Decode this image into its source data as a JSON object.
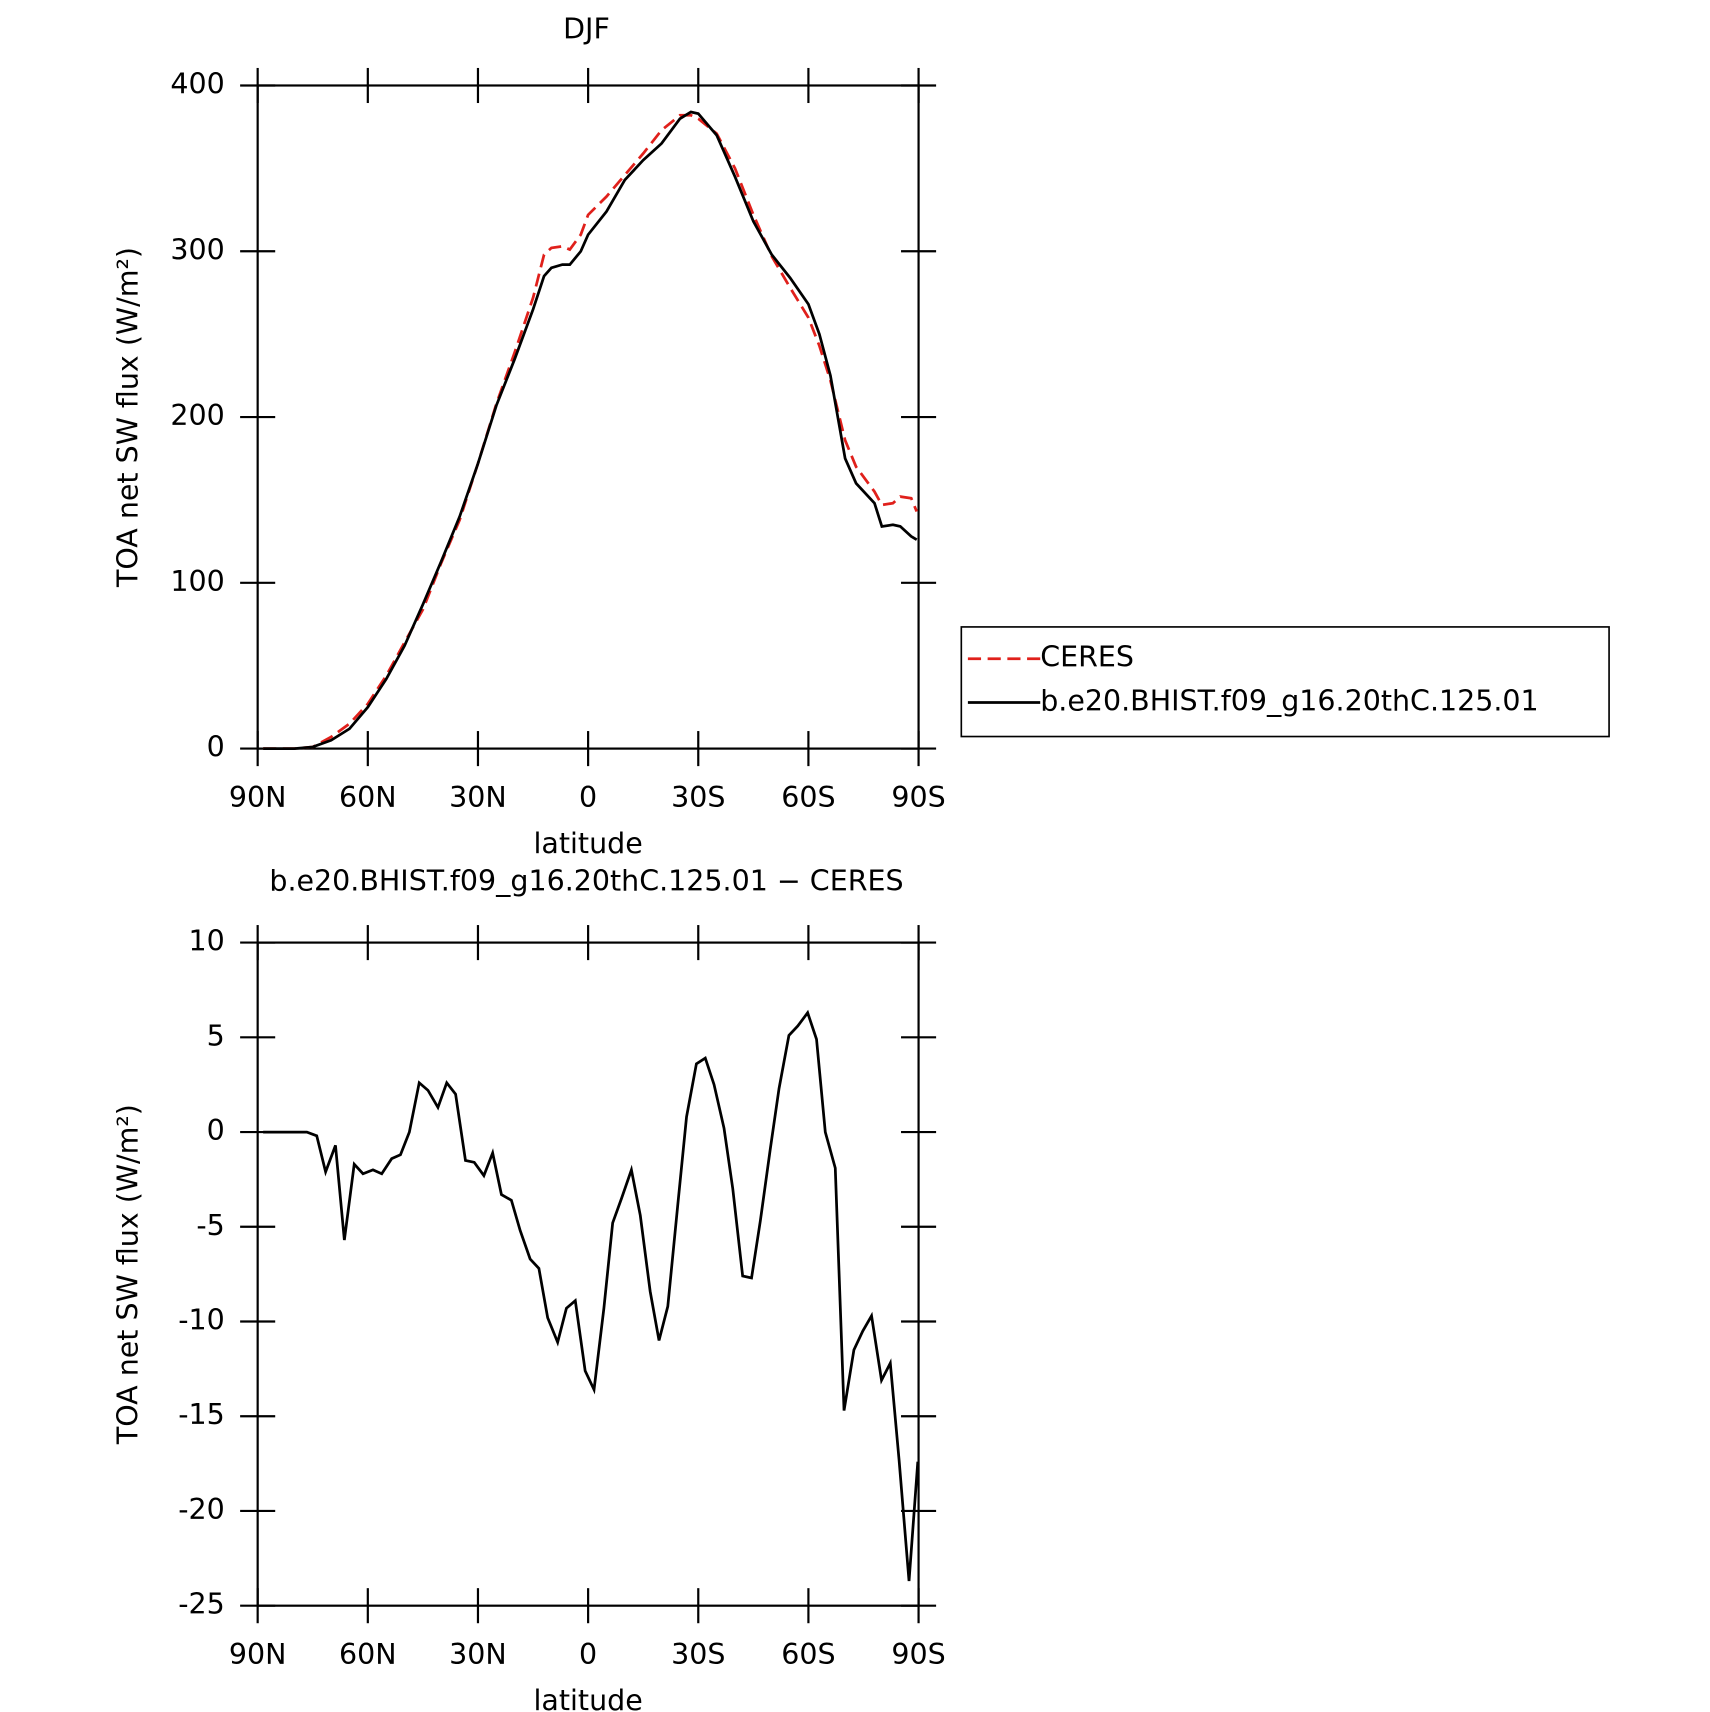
{
  "chart_data": [
    {
      "type": "line",
      "title": "DJF",
      "x_label": "latitude",
      "y_label": "TOA net SW flux (W/m²)",
      "x": [
        88.5,
        80,
        75,
        70,
        65,
        60,
        55,
        50,
        45,
        40,
        35,
        30,
        25,
        20,
        15,
        12,
        10,
        7,
        5,
        2,
        0,
        -5,
        -10,
        -15,
        -20,
        -25,
        -28,
        -30,
        -35,
        -40,
        -45,
        -50,
        -55,
        -60,
        -63,
        -66,
        -70,
        -73,
        -78,
        -80,
        -83,
        -85,
        -88,
        -89.5
      ],
      "series": [
        {
          "name": "CERES",
          "color": "#e0201b",
          "line_style": "dashed",
          "values": [
            0,
            0,
            1,
            7,
            15,
            27,
            44,
            64,
            84,
            112,
            138,
            172,
            208,
            239,
            272,
            298,
            302,
            303,
            301,
            310,
            322,
            333,
            346,
            359,
            373,
            382,
            382,
            380,
            371,
            350,
            322,
            297,
            278,
            260,
            243,
            222,
            186,
            170,
            155,
            147,
            148,
            152,
            151,
            143
          ]
        },
        {
          "name": "b.e20.BHIST.f09_g16.20thC.125.01",
          "color": "#000000",
          "line_style": "solid",
          "values": [
            0,
            0,
            1,
            5,
            12,
            25,
            42,
            62,
            87,
            113,
            140,
            172,
            207,
            235,
            265,
            285,
            290,
            292,
            292,
            300,
            310,
            324,
            343,
            355,
            365,
            380,
            384,
            383,
            370,
            345,
            318,
            298,
            284,
            268,
            250,
            225,
            175,
            160,
            148,
            134,
            135,
            134,
            128,
            126
          ]
        }
      ],
      "xlim": [
        90,
        -90
      ],
      "xticks": [
        {
          "value": 90,
          "label": "90N"
        },
        {
          "value": 60,
          "label": "60N"
        },
        {
          "value": 30,
          "label": "30N"
        },
        0,
        {
          "value": -30,
          "label": "30S"
        },
        {
          "value": -60,
          "label": "60S"
        },
        {
          "value": -90,
          "label": "90S"
        }
      ],
      "ylim": [
        0,
        400
      ],
      "yticks": [
        0,
        100,
        200,
        300,
        400
      ],
      "legend": "right"
    },
    {
      "type": "line",
      "title": "b.e20.BHIST.f09_g16.20thC.125.01 − CERES",
      "x_label": "latitude",
      "y_label": "TOA net SW flux (W/m²)",
      "x": [
        88.5,
        83.1,
        76.6,
        73.9,
        71.5,
        68.8,
        66.4,
        63.7,
        61.3,
        58.6,
        56.2,
        53.5,
        51.1,
        48.7,
        46.0,
        43.6,
        40.9,
        38.5,
        36.1,
        33.4,
        31.0,
        28.4,
        26.0,
        23.6,
        20.9,
        18.5,
        15.8,
        13.4,
        11.0,
        8.3,
        5.9,
        3.5,
        0.8,
        -1.6,
        -4.3,
        -6.7,
        -9.1,
        -11.8,
        -14.2,
        -16.9,
        -19.3,
        -21.7,
        -24.4,
        -26.8,
        -29.5,
        -31.9,
        -34.3,
        -37.0,
        -39.4,
        -42.1,
        -44.5,
        -46.9,
        -49.6,
        -52.0,
        -54.7,
        -57.1,
        -59.8,
        -62.2,
        -64.6,
        -67.3,
        -69.7,
        -72.4,
        -74.8,
        -77.2,
        -79.9,
        -82.3,
        -84.7,
        -87.4,
        -89.8
      ],
      "series": [
        {
          "name": "b.e20.BHIST.f09_g16.20thC.125.01 − CERES",
          "color": "#000000",
          "line_style": "solid",
          "values": [
            0,
            0,
            0,
            -0.2,
            -2.1,
            -0.7,
            -5.7,
            -1.7,
            -2.2,
            -2.0,
            -2.2,
            -1.4,
            -1.2,
            0.0,
            2.6,
            2.2,
            1.3,
            2.6,
            2.0,
            -1.5,
            -1.6,
            -2.3,
            -1.1,
            -3.3,
            -3.6,
            -5.2,
            -6.7,
            -7.2,
            -9.8,
            -11.1,
            -9.3,
            -8.9,
            -12.6,
            -13.6,
            -9.3,
            -4.8,
            -3.5,
            -2.0,
            -4.4,
            -8.4,
            -11.0,
            -9.2,
            -3.9,
            0.8,
            3.6,
            3.9,
            2.5,
            0.2,
            -3.0,
            -7.6,
            -7.7,
            -4.7,
            -0.9,
            2.3,
            5.1,
            5.6,
            6.3,
            4.9,
            0.0,
            -1.9,
            -14.7,
            -11.5,
            -10.5,
            -9.7,
            -13.1,
            -12.2,
            -17.3,
            -23.7,
            -17.4
          ]
        }
      ],
      "xlim": [
        90,
        -90
      ],
      "xticks": [
        {
          "value": 90,
          "label": "90N"
        },
        {
          "value": 60,
          "label": "60N"
        },
        {
          "value": 30,
          "label": "30N"
        },
        0,
        {
          "value": -30,
          "label": "30S"
        },
        {
          "value": -60,
          "label": "60S"
        },
        {
          "value": -90,
          "label": "90S"
        }
      ],
      "ylim": [
        -25,
        10
      ],
      "yticks": [
        -25,
        -20,
        -15,
        -10,
        -5,
        0,
        5,
        10
      ]
    }
  ]
}
